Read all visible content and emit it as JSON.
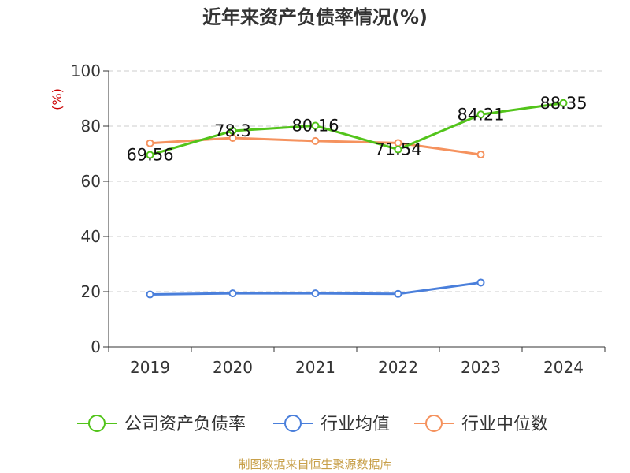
{
  "chart_data": {
    "type": "line",
    "title": "近年来资产负债率情况(%)",
    "ylabel": "(%)",
    "ylabel_color": "#cc0000",
    "categories": [
      "2019",
      "2020",
      "2021",
      "2022",
      "2023",
      "2024"
    ],
    "ylim": [
      0,
      100
    ],
    "yticks": [
      0,
      20,
      40,
      60,
      80,
      100
    ],
    "grid": true,
    "legend_position": "bottom",
    "series": [
      {
        "name": "公司资产负债率",
        "color": "#52c41a",
        "values": [
          69.56,
          78.3,
          80.16,
          71.54,
          84.21,
          88.35
        ],
        "labels": [
          "69.56",
          "78.3",
          "80.16",
          "71.54",
          "84.21",
          "88.35"
        ]
      },
      {
        "name": "行业均值",
        "color": "#4a7fdb",
        "values": [
          19.0,
          19.4,
          19.4,
          19.2,
          23.3,
          null
        ]
      },
      {
        "name": "行业中位数",
        "color": "#f5925e",
        "values": [
          73.8,
          75.7,
          74.6,
          73.9,
          69.7,
          null
        ]
      }
    ]
  },
  "source_text": "制图数据来自恒生聚源数据库"
}
